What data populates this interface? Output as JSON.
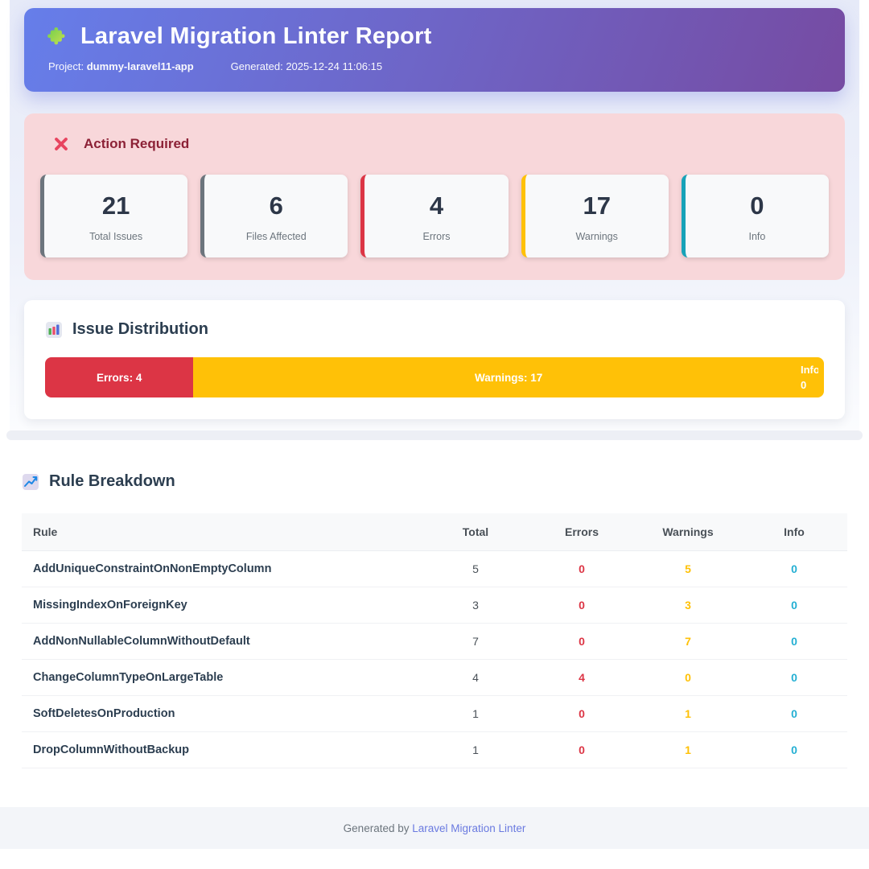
{
  "header": {
    "title": "Laravel Migration Linter Report",
    "project_label": "Project:",
    "project_name": "dummy-laravel11-app",
    "generated_label": "Generated:",
    "generated_value": "2025-12-24 11:06:15"
  },
  "alert": {
    "title": "Action Required",
    "stats": [
      {
        "value": "21",
        "label": "Total Issues",
        "accent": "#6c757d"
      },
      {
        "value": "6",
        "label": "Files Affected",
        "accent": "#6c757d"
      },
      {
        "value": "4",
        "label": "Errors",
        "accent": "#dc3545"
      },
      {
        "value": "17",
        "label": "Warnings",
        "accent": "#ffc107"
      },
      {
        "value": "0",
        "label": "Info",
        "accent": "#17a2b8"
      }
    ]
  },
  "distribution": {
    "title": "Issue Distribution"
  },
  "chart_data": {
    "type": "bar",
    "variant": "horizontal-stacked",
    "title": "Issue Distribution",
    "total": 21,
    "segments": [
      {
        "name": "Errors",
        "value": 4,
        "label": "Errors: 4",
        "color": "#dc3545"
      },
      {
        "name": "Warnings",
        "value": 17,
        "label": "Warnings: 17",
        "color": "#ffc107"
      },
      {
        "name": "Info",
        "value": 0,
        "label": "Info: 0",
        "color": "#17a2b8"
      }
    ]
  },
  "breakdown": {
    "title": "Rule Breakdown",
    "columns": [
      "Rule",
      "Total",
      "Errors",
      "Warnings",
      "Info"
    ],
    "rows": [
      {
        "rule": "AddUniqueConstraintOnNonEmptyColumn",
        "total": "5",
        "errors": "0",
        "warnings": "5",
        "info": "0"
      },
      {
        "rule": "MissingIndexOnForeignKey",
        "total": "3",
        "errors": "0",
        "warnings": "3",
        "info": "0"
      },
      {
        "rule": "AddNonNullableColumnWithoutDefault",
        "total": "7",
        "errors": "0",
        "warnings": "7",
        "info": "0"
      },
      {
        "rule": "ChangeColumnTypeOnLargeTable",
        "total": "4",
        "errors": "4",
        "warnings": "0",
        "info": "0"
      },
      {
        "rule": "SoftDeletesOnProduction",
        "total": "1",
        "errors": "0",
        "warnings": "1",
        "info": "0"
      },
      {
        "rule": "DropColumnWithoutBackup",
        "total": "1",
        "errors": "0",
        "warnings": "1",
        "info": "0"
      }
    ]
  },
  "footer": {
    "text": "Generated by",
    "link_text": "Laravel Migration Linter"
  },
  "icons": {
    "header": "puzzle-icon",
    "alert": "x-icon",
    "distribution": "bar-chart-icon",
    "breakdown": "line-chart-icon"
  },
  "colors": {
    "hero_gradient_start": "#667eea",
    "hero_gradient_end": "#764ba2",
    "alert_bg": "#f8d7da",
    "alert_text": "#8c2136",
    "error": "#dc3545",
    "warning": "#ffc107",
    "info_border": "#17a2b8",
    "info_text": "#24afd3",
    "neutral": "#6c757d",
    "link": "#6a7ae0"
  }
}
